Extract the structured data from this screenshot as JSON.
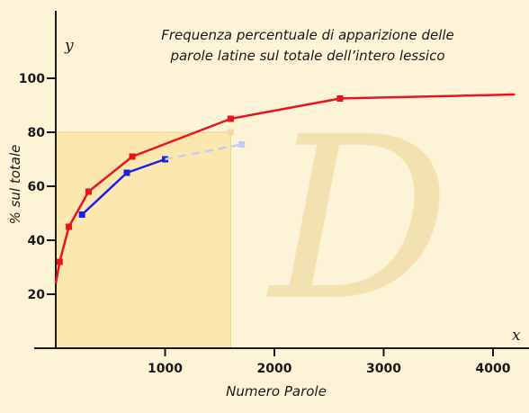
{
  "chart_data": {
    "type": "line",
    "title_lines": [
      "Frequenza percentuale di apparizione delle",
      "parole latine sul totale dell’intero lessico"
    ],
    "xlabel": "Numero Parole",
    "ylabel": "% sul totale",
    "x_axis_letter": "x",
    "y_axis_letter": "y",
    "xlim": [
      0,
      4200
    ],
    "ylim": [
      0,
      100
    ],
    "x_ticks": [
      {
        "value": 1000,
        "label": "1000"
      },
      {
        "value": 2000,
        "label": "2000"
      },
      {
        "value": 3000,
        "label": "3000"
      },
      {
        "value": 4000,
        "label": "4000"
      }
    ],
    "y_ticks": [
      {
        "value": 20,
        "label": "20"
      },
      {
        "value": 40,
        "label": "40"
      },
      {
        "value": 60,
        "label": "60"
      },
      {
        "value": 80,
        "label": "80"
      },
      {
        "value": 100,
        "label": "100"
      }
    ],
    "grid": false,
    "highlight_region": {
      "x": [
        0,
        1600
      ],
      "y": [
        0,
        80
      ],
      "color": "#fbe3a0"
    },
    "watermark_letter": "D",
    "series": [
      {
        "color": "#e8141c",
        "curve_start": {
          "x": 0,
          "y": 24
        },
        "points": [
          {
            "x": 35,
            "y": 32
          },
          {
            "x": 120,
            "y": 45
          },
          {
            "x": 300,
            "y": 58
          },
          {
            "x": 700,
            "y": 71
          },
          {
            "x": 1600,
            "y": 85
          },
          {
            "x": 2600,
            "y": 92.5
          }
        ],
        "curve_end": {
          "x": 4200,
          "y": 94
        }
      },
      {
        "color": "#1f1ee6",
        "points": [
          {
            "x": 240,
            "y": 49.5
          },
          {
            "x": 650,
            "y": 65
          },
          {
            "x": 1000,
            "y": 70
          }
        ]
      },
      {
        "color": "#c7cbef",
        "dashed": true,
        "points": [
          {
            "x": 1000,
            "y": 70
          },
          {
            "x": 1700,
            "y": 75.5
          }
        ]
      }
    ],
    "colors": {
      "background": "#fdf3d6",
      "axis": "#1a1a1a",
      "faded_marker": "#f6d7a3"
    }
  }
}
